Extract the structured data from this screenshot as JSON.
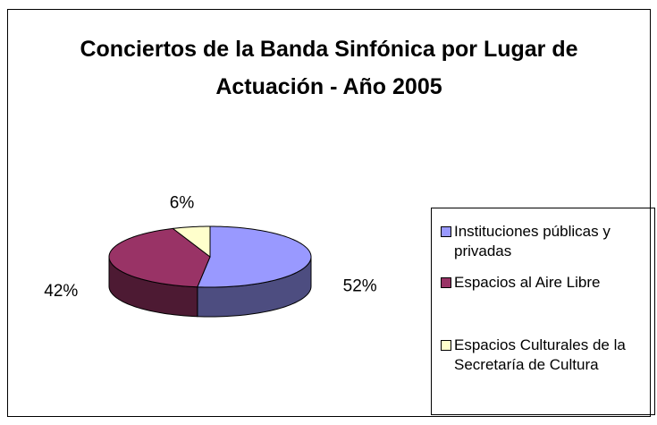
{
  "chart_data": {
    "type": "pie3d",
    "title": "Conciertos de la Banda Sinfónica por Lugar de Actuación - Año 2005",
    "categories": [
      "Instituciones públicas y privadas",
      "Espacios al Aire Libre",
      "Espacios Culturales de la Secretaría de Cultura"
    ],
    "values": [
      52,
      42,
      6
    ],
    "value_labels": [
      "52%",
      "42%",
      "6%"
    ],
    "colors": [
      "#9999ff",
      "#993366",
      "#ffffcc"
    ],
    "legend": "right"
  }
}
